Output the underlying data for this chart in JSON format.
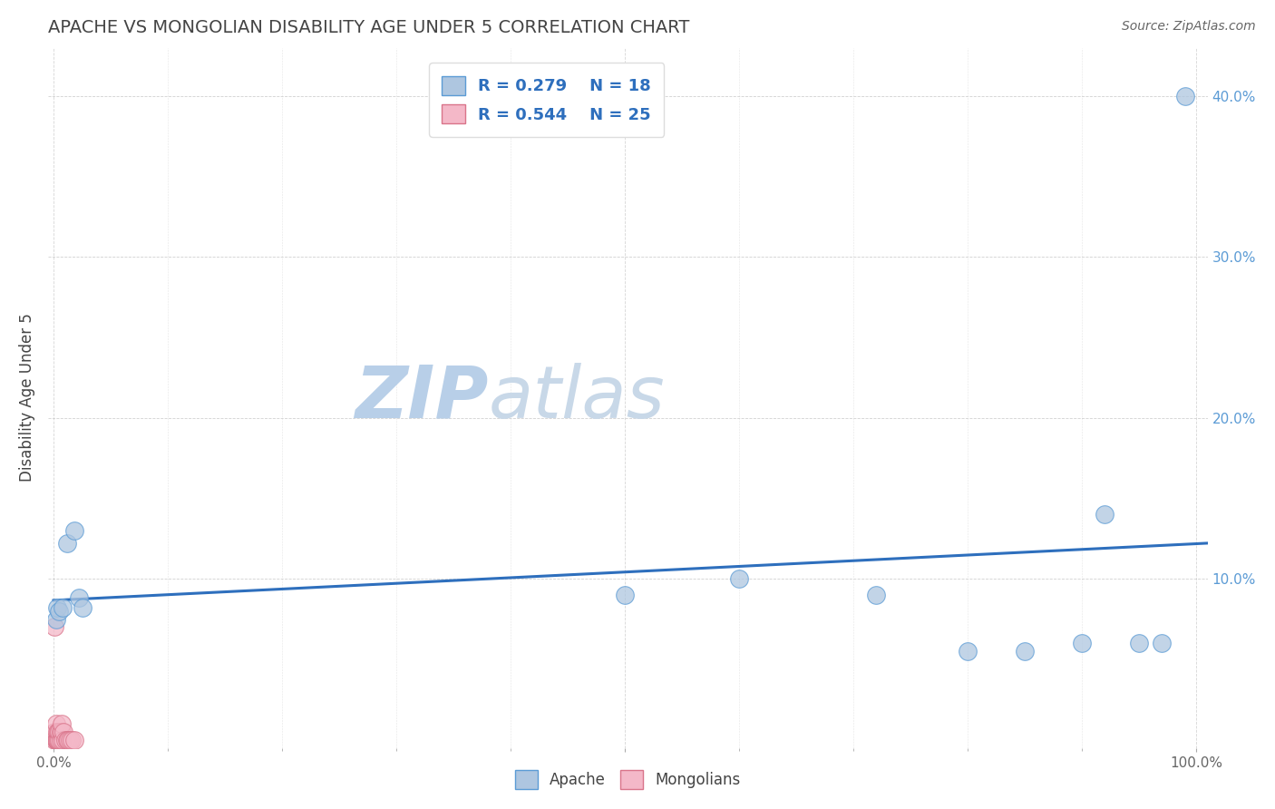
{
  "title": "APACHE VS MONGOLIAN DISABILITY AGE UNDER 5 CORRELATION CHART",
  "source": "Source: ZipAtlas.com",
  "ylabel": "Disability Age Under 5",
  "xlim": [
    -0.005,
    1.01
  ],
  "ylim": [
    -0.005,
    0.43
  ],
  "xtick_major": [
    0.0,
    0.5,
    1.0
  ],
  "xtick_major_labels": [
    "0.0%",
    "",
    "100.0%"
  ],
  "xtick_minor": [
    0.1,
    0.2,
    0.3,
    0.4,
    0.6,
    0.7,
    0.8,
    0.9
  ],
  "ytick_right": [
    0.1,
    0.2,
    0.3,
    0.4
  ],
  "ytick_right_labels": [
    "10.0%",
    "20.0%",
    "30.0%",
    "40.0%"
  ],
  "apache_R": 0.279,
  "apache_N": 18,
  "mongolian_R": 0.544,
  "mongolian_N": 25,
  "apache_color": "#aec6e0",
  "apache_edge": "#5b9bd5",
  "mongolian_color": "#f4b8c8",
  "mongolian_edge": "#d9748a",
  "trend_apache_color": "#2e6fbd",
  "trend_mongolian_color": "#d4788a",
  "watermark_color": "#ccd9e8",
  "apache_x": [
    0.002,
    0.003,
    0.005,
    0.008,
    0.012,
    0.018,
    0.022,
    0.025,
    0.5,
    0.6,
    0.72,
    0.8,
    0.85,
    0.9,
    0.92,
    0.95,
    0.97,
    0.99
  ],
  "apache_y": [
    0.075,
    0.082,
    0.08,
    0.082,
    0.122,
    0.13,
    0.088,
    0.082,
    0.09,
    0.1,
    0.09,
    0.055,
    0.055,
    0.06,
    0.14,
    0.06,
    0.06,
    0.4
  ],
  "mongolian_x": [
    0.001,
    0.001,
    0.001,
    0.002,
    0.002,
    0.002,
    0.003,
    0.003,
    0.003,
    0.004,
    0.004,
    0.005,
    0.005,
    0.006,
    0.006,
    0.007,
    0.007,
    0.008,
    0.009,
    0.01,
    0.012,
    0.013,
    0.014,
    0.016,
    0.018
  ],
  "mongolian_y": [
    0.07,
    0.005,
    0.0,
    0.0,
    0.01,
    0.0,
    0.0,
    0.005,
    0.0,
    0.0,
    0.005,
    0.0,
    0.005,
    0.0,
    0.005,
    0.005,
    0.01,
    0.0,
    0.005,
    0.0,
    0.0,
    0.0,
    0.0,
    0.0,
    0.0
  ],
  "mongolian_trend_x_end": 0.22,
  "background_color": "#ffffff",
  "grid_color": "#cccccc"
}
